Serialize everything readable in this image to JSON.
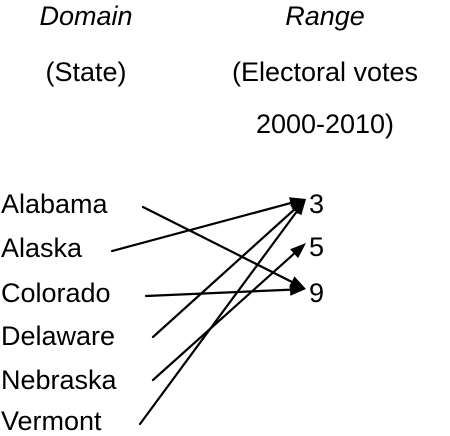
{
  "domain_header": {
    "title": "Domain",
    "subtitle": "(State)"
  },
  "range_header": {
    "title": "Range",
    "subtitle_line1": "(Electoral votes",
    "subtitle_line2": "2000-2010)"
  },
  "domain": [
    "Alabama",
    "Alaska",
    "Colorado",
    "Delaware",
    "Nebraska",
    "Vermont"
  ],
  "range": [
    "3",
    "5",
    "9"
  ],
  "mapping": [
    {
      "from": "Alabama",
      "to": "9"
    },
    {
      "from": "Alaska",
      "to": "3"
    },
    {
      "from": "Colorado",
      "to": "9"
    },
    {
      "from": "Delaware",
      "to": "3"
    },
    {
      "from": "Nebraska",
      "to": "5"
    },
    {
      "from": "Vermont",
      "to": "3"
    }
  ],
  "colors": {
    "text": "#000000",
    "arrow": "#000000",
    "background": "#ffffff"
  }
}
